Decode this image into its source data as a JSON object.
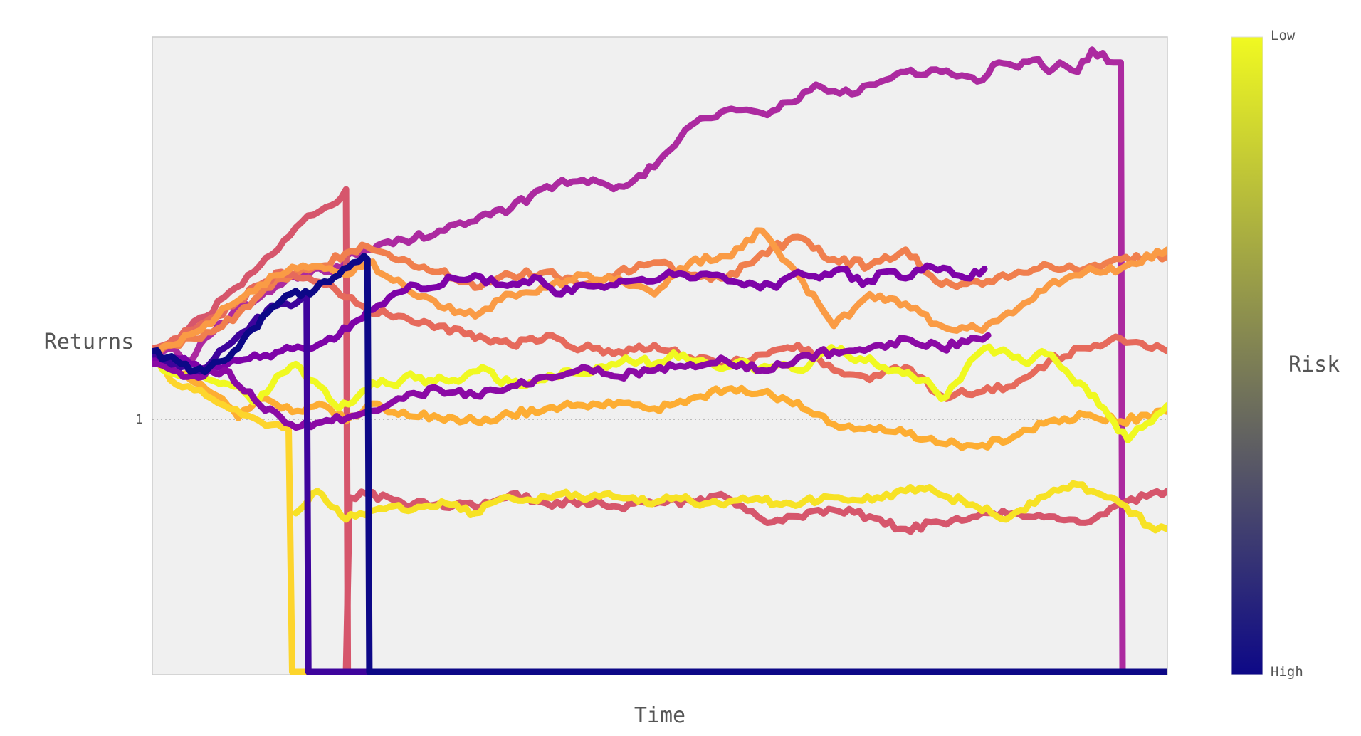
{
  "chart_data": {
    "type": "line",
    "title": "",
    "xlabel": "Time",
    "ylabel": "Returns",
    "ylim": [
      0,
      2.0
    ],
    "yticks": [
      {
        "value": 1,
        "label": "1"
      }
    ],
    "grid": false,
    "reference_line": {
      "y": 1,
      "style": "dotted"
    },
    "legend": "none",
    "colorbar": {
      "title": "Risk",
      "top_label": "Low",
      "bottom_label": "High",
      "colors": [
        "#f0f921",
        "#fdb42f",
        "#ed7953",
        "#cc4778",
        "#9c179e",
        "#5c01a6",
        "#0d0887"
      ]
    },
    "series": [
      {
        "color": "#ac2aa0",
        "x": [
          0,
          3,
          6,
          9,
          12,
          16,
          20,
          24,
          30,
          36,
          45,
          53,
          54,
          60,
          70,
          80,
          90,
          100,
          110,
          120,
          130,
          140,
          150,
          160,
          170,
          180,
          185,
          190,
          195,
          200,
          206,
          210,
          220,
          230,
          236,
          240,
          247,
          250,
          253,
          258,
          262,
          268,
          270,
          270.5,
          280,
          283
        ],
        "y": [
          0.98,
          1.01,
          1.02,
          0.97,
          1.0,
          1.06,
          1.1,
          1.14,
          1.18,
          1.22,
          1.27,
          1.27,
          1.31,
          1.33,
          1.36,
          1.39,
          1.42,
          1.46,
          1.53,
          1.55,
          1.53,
          1.59,
          1.72,
          1.77,
          1.76,
          1.8,
          1.85,
          1.83,
          1.82,
          1.85,
          1.87,
          1.89,
          1.89,
          1.86,
          1.92,
          1.91,
          1.93,
          1.89,
          1.92,
          1.89,
          1.96,
          1.92,
          1.92,
          0.0,
          0.0,
          0.0
        ]
      },
      {
        "color": "#d6566c",
        "x": [
          0,
          5,
          10,
          15,
          20,
          25,
          30,
          35,
          40,
          45,
          50,
          54,
          54.5,
          60,
          70,
          80,
          90,
          100,
          110,
          120,
          130,
          140,
          150,
          160,
          170,
          180,
          190,
          200,
          210,
          220,
          230,
          240,
          250,
          260,
          270,
          283
        ],
        "y": [
          1.0,
          1.04,
          1.08,
          1.12,
          1.18,
          1.22,
          1.28,
          1.33,
          1.4,
          1.44,
          1.47,
          1.52,
          0.0,
          0.0,
          0.0,
          0.0,
          0.0,
          0.0,
          0.0,
          0.0,
          0.0,
          0.0,
          0.0,
          0.0,
          0.0,
          0.0,
          0.0,
          0.0,
          0.0,
          0.0,
          0.0,
          0.0,
          0.0,
          0.0,
          0.0,
          0.0
        ]
      },
      {
        "color": "#d6566c",
        "x": [
          54,
          55,
          60,
          70,
          80,
          90,
          100,
          110,
          120,
          130,
          140,
          150,
          160,
          170,
          180,
          190,
          200,
          210,
          220,
          230,
          240,
          250,
          260,
          270,
          283
        ],
        "y": [
          0.0,
          0.55,
          0.56,
          0.53,
          0.53,
          0.52,
          0.56,
          0.53,
          0.54,
          0.52,
          0.53,
          0.54,
          0.55,
          0.48,
          0.49,
          0.51,
          0.49,
          0.45,
          0.47,
          0.49,
          0.5,
          0.49,
          0.47,
          0.53,
          0.57
        ]
      },
      {
        "color": "#f07f4e",
        "x": [
          0,
          6,
          12,
          18,
          24,
          30,
          36,
          42,
          48,
          54,
          60,
          70,
          80,
          90,
          100,
          110,
          120,
          130,
          140,
          150,
          160,
          170,
          180,
          190,
          200,
          210,
          220,
          230,
          240,
          250,
          260,
          270,
          283
        ],
        "y": [
          1.01,
          1.03,
          1.05,
          1.08,
          1.13,
          1.19,
          1.24,
          1.27,
          1.28,
          1.32,
          1.34,
          1.3,
          1.26,
          1.21,
          1.25,
          1.26,
          1.22,
          1.26,
          1.29,
          1.25,
          1.24,
          1.32,
          1.37,
          1.3,
          1.28,
          1.33,
          1.22,
          1.23,
          1.25,
          1.28,
          1.27,
          1.3,
          1.31
        ]
      },
      {
        "color": "#e66a5c",
        "x": [
          0,
          6,
          12,
          18,
          24,
          30,
          36,
          42,
          48,
          54,
          60,
          70,
          80,
          90,
          100,
          110,
          120,
          130,
          140,
          150,
          160,
          170,
          180,
          190,
          200,
          210,
          220,
          230,
          240,
          250,
          260,
          270,
          283
        ],
        "y": [
          1.02,
          1.05,
          1.08,
          1.12,
          1.17,
          1.22,
          1.26,
          1.24,
          1.22,
          1.18,
          1.14,
          1.12,
          1.09,
          1.05,
          1.03,
          1.06,
          1.02,
          1.01,
          1.03,
          0.99,
          0.97,
          1.0,
          1.03,
          0.95,
          0.92,
          0.96,
          0.87,
          0.88,
          0.9,
          0.98,
          1.02,
          1.05,
          1.01
        ]
      },
      {
        "color": "#fa9b45",
        "x": [
          0,
          6,
          12,
          18,
          24,
          30,
          36,
          42,
          48,
          54,
          60,
          70,
          80,
          90,
          100,
          110,
          120,
          130,
          140,
          150,
          160,
          170,
          180,
          190,
          200,
          210,
          220,
          230,
          240,
          250,
          260,
          270,
          283
        ],
        "y": [
          1.0,
          1.03,
          1.07,
          1.12,
          1.17,
          1.22,
          1.25,
          1.28,
          1.27,
          1.25,
          1.29,
          1.22,
          1.15,
          1.12,
          1.19,
          1.21,
          1.25,
          1.24,
          1.19,
          1.29,
          1.31,
          1.39,
          1.25,
          1.09,
          1.19,
          1.16,
          1.09,
          1.08,
          1.13,
          1.22,
          1.26,
          1.27,
          1.33
        ]
      },
      {
        "color": "#fdad33",
        "x": [
          0,
          6,
          12,
          18,
          24,
          30,
          36,
          42,
          48,
          54,
          60,
          70,
          80,
          90,
          100,
          110,
          120,
          130,
          140,
          150,
          160,
          170,
          180,
          190,
          200,
          210,
          220,
          230,
          240,
          250,
          260,
          270,
          283
        ],
        "y": [
          0.99,
          0.95,
          0.91,
          0.87,
          0.8,
          0.86,
          0.83,
          0.82,
          0.84,
          0.79,
          0.84,
          0.82,
          0.8,
          0.79,
          0.81,
          0.83,
          0.84,
          0.85,
          0.83,
          0.86,
          0.89,
          0.88,
          0.85,
          0.78,
          0.77,
          0.75,
          0.72,
          0.71,
          0.74,
          0.79,
          0.81,
          0.79,
          0.82
        ]
      },
      {
        "color": "#fdd52c",
        "x": [
          0,
          3,
          5,
          10,
          15,
          20,
          25,
          30,
          35,
          38,
          39,
          40,
          42,
          45,
          48,
          50,
          52,
          54,
          56,
          58,
          60,
          64,
          68,
          72,
          76,
          80,
          85,
          90,
          95,
          100,
          105,
          110,
          115,
          120,
          125,
          130,
          135,
          140,
          145,
          150,
          155,
          160,
          165,
          170,
          175,
          180,
          185,
          190,
          195,
          200,
          205,
          210,
          215,
          220,
          225,
          230,
          235,
          240,
          245,
          250,
          255,
          260,
          265,
          270,
          275,
          280,
          283
        ],
        "y": [
          1.0,
          0.96,
          0.92,
          0.9,
          0.87,
          0.84,
          0.81,
          0.79,
          0.78,
          0.77,
          0.0,
          0.0,
          0.0,
          0.0,
          0.0,
          0.0,
          0.0,
          0.0,
          0.0,
          0.0,
          0.0,
          0.0,
          0.0,
          0.0,
          0.0,
          0.0,
          0.0,
          0.0,
          0.0,
          0.0,
          0.0,
          0.0,
          0.0,
          0.0,
          0.0,
          0.0,
          0.0,
          0.0,
          0.0,
          0.0,
          0.0,
          0.0,
          0.0,
          0.0,
          0.0,
          0.0,
          0.0,
          0.0,
          0.0,
          0.0,
          0.0,
          0.0,
          0.0,
          0.0,
          0.0,
          0.0,
          0.0,
          0.0,
          0.0,
          0.0,
          0.0,
          0.0,
          0.0,
          0.0,
          0.0,
          0.0,
          0.0
        ]
      },
      {
        "color": "#f7e225",
        "x": [
          40,
          42,
          46,
          50,
          54,
          58,
          62,
          66,
          70,
          74,
          78,
          82,
          86,
          90,
          94,
          98,
          102,
          106,
          110,
          114,
          118,
          122,
          126,
          130,
          134,
          138,
          142,
          146,
          150,
          154,
          158,
          162,
          166,
          170,
          174,
          178,
          182,
          186,
          190,
          194,
          198,
          202,
          206,
          210,
          214,
          218,
          222,
          226,
          230,
          234,
          238,
          242,
          246,
          250,
          254,
          258,
          262,
          266,
          270,
          274,
          278,
          283
        ],
        "y": [
          0.5,
          0.52,
          0.57,
          0.52,
          0.48,
          0.5,
          0.51,
          0.52,
          0.51,
          0.52,
          0.52,
          0.53,
          0.51,
          0.5,
          0.53,
          0.55,
          0.54,
          0.54,
          0.55,
          0.56,
          0.56,
          0.55,
          0.56,
          0.55,
          0.55,
          0.53,
          0.54,
          0.55,
          0.54,
          0.53,
          0.53,
          0.54,
          0.54,
          0.54,
          0.53,
          0.53,
          0.54,
          0.54,
          0.55,
          0.54,
          0.54,
          0.55,
          0.55,
          0.57,
          0.58,
          0.57,
          0.55,
          0.54,
          0.52,
          0.5,
          0.48,
          0.51,
          0.53,
          0.56,
          0.58,
          0.59,
          0.57,
          0.55,
          0.53,
          0.5,
          0.46,
          0.45
        ]
      },
      {
        "color": "#f0f921",
        "x": [
          0,
          3,
          6,
          9,
          12,
          16,
          20,
          24,
          28,
          32,
          36,
          40,
          44,
          48,
          52,
          56,
          60,
          64,
          68,
          72,
          76,
          80,
          84,
          88,
          92,
          96,
          100,
          104,
          108,
          112,
          116,
          120,
          124,
          128,
          132,
          136,
          140,
          144,
          148,
          152,
          156,
          160,
          164,
          168,
          172,
          176,
          180,
          184,
          188,
          192,
          196,
          200,
          204,
          208,
          212,
          216,
          220,
          224,
          228,
          232,
          236,
          240,
          244,
          248,
          252,
          256,
          260,
          264,
          268,
          272,
          276,
          280,
          283
        ],
        "y": [
          1.0,
          0.95,
          0.94,
          0.93,
          0.95,
          0.92,
          0.91,
          0.9,
          0.85,
          0.88,
          0.94,
          0.97,
          0.92,
          0.89,
          0.83,
          0.85,
          0.89,
          0.92,
          0.9,
          0.94,
          0.91,
          0.93,
          0.92,
          0.94,
          0.96,
          0.92,
          0.91,
          0.9,
          0.92,
          0.93,
          0.95,
          0.94,
          0.96,
          0.97,
          0.99,
          0.98,
          0.97,
          0.99,
          1.0,
          0.98,
          0.97,
          0.96,
          0.98,
          0.95,
          0.96,
          0.97,
          0.95,
          0.98,
          1.01,
          1.02,
          0.98,
          0.99,
          0.96,
          0.95,
          0.93,
          0.92,
          0.86,
          0.91,
          0.98,
          1.02,
          1.01,
          0.99,
          0.97,
          1.01,
          0.98,
          0.93,
          0.9,
          0.84,
          0.79,
          0.73,
          0.77,
          0.81,
          0.84
        ]
      },
      {
        "color": "#7e03a8",
        "x": [
          0,
          6,
          12,
          18,
          24,
          30,
          36,
          42,
          48,
          52,
          56,
          60,
          66,
          72,
          78,
          84,
          90,
          96,
          102,
          108,
          114,
          120,
          126,
          132,
          138,
          144,
          150,
          156,
          162,
          168,
          174,
          180,
          186,
          192,
          198,
          204,
          210,
          216,
          222,
          228,
          232
        ],
        "y": [
          0.98,
          0.99,
          0.97,
          0.96,
          0.98,
          0.99,
          1.01,
          1.02,
          1.04,
          1.06,
          1.1,
          1.14,
          1.18,
          1.22,
          1.21,
          1.24,
          1.25,
          1.22,
          1.22,
          1.24,
          1.19,
          1.22,
          1.21,
          1.23,
          1.23,
          1.26,
          1.24,
          1.25,
          1.23,
          1.22,
          1.21,
          1.26,
          1.24,
          1.27,
          1.22,
          1.26,
          1.24,
          1.28,
          1.27,
          1.24,
          1.27
        ]
      },
      {
        "color": "#8b0aa5",
        "x": [
          0,
          10,
          20,
          30,
          40,
          50,
          60,
          70,
          80,
          90,
          100,
          110,
          120,
          130,
          140,
          150,
          160,
          170,
          180,
          190,
          200,
          210,
          220,
          230,
          233
        ],
        "y": [
          0.97,
          0.93,
          0.95,
          0.84,
          0.77,
          0.79,
          0.82,
          0.86,
          0.89,
          0.87,
          0.9,
          0.93,
          0.96,
          0.93,
          0.95,
          0.97,
          0.98,
          0.95,
          0.99,
          1.01,
          1.02,
          1.05,
          1.02,
          1.05,
          1.06
        ]
      },
      {
        "color": "#3e049c",
        "x": [
          0,
          4,
          8,
          12,
          16,
          20,
          24,
          28,
          32,
          36,
          40,
          42,
          43,
          43.5,
          60,
          100,
          200,
          283
        ],
        "y": [
          1.0,
          0.98,
          0.96,
          0.95,
          0.97,
          1.02,
          1.06,
          1.1,
          1.14,
          1.16,
          1.16,
          1.18,
          1.18,
          0.0,
          0.0,
          0.0,
          0.0,
          0.0
        ]
      },
      {
        "color": "#0d0887",
        "x": [
          0,
          4,
          8,
          12,
          16,
          20,
          24,
          28,
          32,
          36,
          40,
          44,
          48,
          52,
          56,
          59,
          60,
          60.5,
          70,
          100,
          200,
          283
        ],
        "y": [
          1.01,
          0.99,
          0.97,
          0.95,
          0.96,
          0.98,
          1.02,
          1.08,
          1.13,
          1.17,
          1.2,
          1.19,
          1.23,
          1.25,
          1.29,
          1.31,
          1.3,
          0.0,
          0.0,
          0.0,
          0.0,
          0.0
        ]
      }
    ]
  }
}
